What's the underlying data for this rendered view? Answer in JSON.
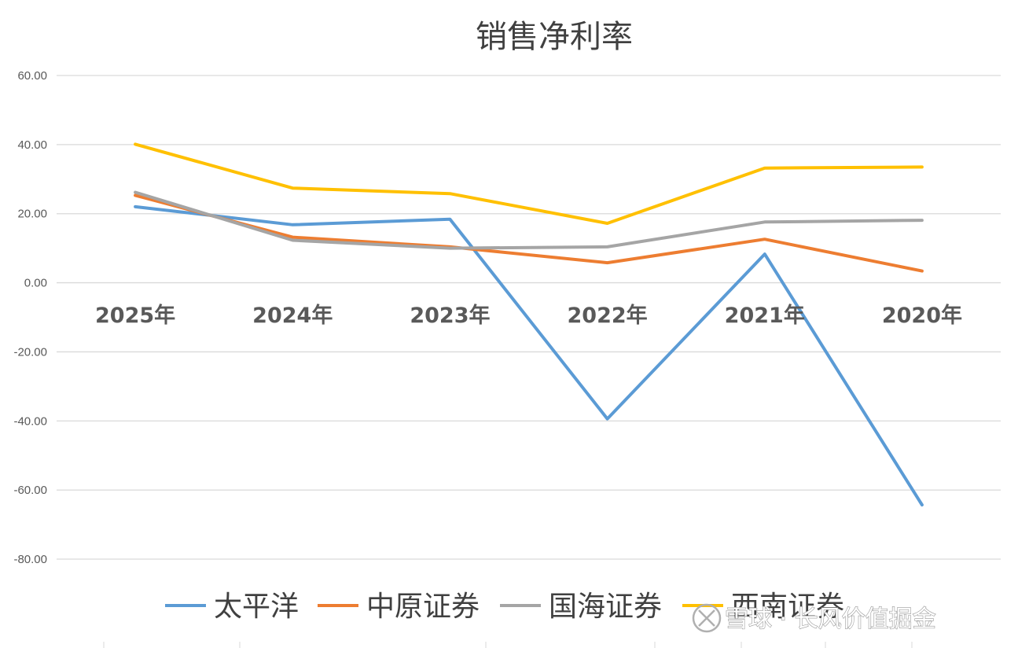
{
  "chart_data": {
    "type": "line",
    "title": "销售净利率",
    "xlabel": "",
    "ylabel": "",
    "categories": [
      "2025年",
      "2024年",
      "2023年",
      "2022年",
      "2021年",
      "2020年"
    ],
    "ylim": [
      -80,
      60
    ],
    "ytick_values": [
      60,
      40,
      20,
      0,
      -20,
      -40,
      -60,
      -80
    ],
    "yticks": [
      "60.00",
      "40.00",
      "20.00",
      "0.00",
      "-20.00",
      "-40.00",
      "-60.00",
      "-80.00"
    ],
    "grid": true,
    "legend_position": "bottom",
    "series": [
      {
        "name": "太平洋",
        "color": "#5b9bd5",
        "values": [
          22.0,
          16.8,
          18.4,
          -39.4,
          8.3,
          -64.3
        ]
      },
      {
        "name": "中原证券",
        "color": "#ed7d31",
        "values": [
          25.3,
          13.2,
          10.4,
          5.8,
          12.6,
          3.4
        ]
      },
      {
        "name": "国海证券",
        "color": "#a5a5a5",
        "values": [
          26.2,
          12.3,
          10.0,
          10.4,
          17.6,
          18.1
        ]
      },
      {
        "name": "西南证券",
        "color": "#ffc000",
        "values": [
          40.1,
          27.4,
          25.8,
          17.2,
          33.2,
          33.5
        ]
      }
    ]
  },
  "watermark": {
    "text": "雪球 · 长风价值掘金",
    "icon": "xueqiu-logo-icon"
  }
}
